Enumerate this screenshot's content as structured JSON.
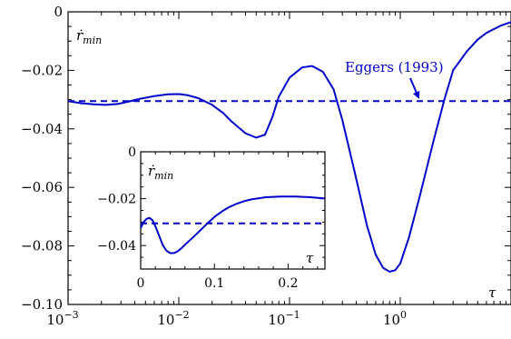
{
  "chart_data": [
    {
      "type": "line",
      "xscale": "log",
      "xlim": [
        0.001,
        10
      ],
      "ylim": [
        -0.1,
        0.0
      ],
      "x_tick_labels": [
        {
          "base": "10",
          "exp": "−3",
          "value": 0.001
        },
        {
          "base": "10",
          "exp": "−2",
          "value": 0.01
        },
        {
          "base": "10",
          "exp": "−1",
          "value": 0.1
        },
        {
          "base": "10",
          "exp": "0",
          "value": 1
        }
      ],
      "y_tick_labels": [
        {
          "label": "0",
          "value": 0.0
        },
        {
          "label": "−0.02",
          "value": -0.02
        },
        {
          "label": "−0.04",
          "value": -0.04
        },
        {
          "label": "−0.06",
          "value": -0.06
        },
        {
          "label": "−0.08",
          "value": -0.08
        },
        {
          "label": "−0.10",
          "value": -0.1
        }
      ],
      "xlabel": "τ",
      "ylabel": {
        "main": "ṙ",
        "sub": "min"
      },
      "series": [
        {
          "style": "solid",
          "color": "#0000cc",
          "x": [
            0.001,
            0.0013,
            0.0017,
            0.0022,
            0.0028,
            0.0035,
            0.0045,
            0.006,
            0.008,
            0.01,
            0.012,
            0.015,
            0.02,
            0.025,
            0.03,
            0.04,
            0.05,
            0.06,
            0.07,
            0.08,
            0.1,
            0.13,
            0.16,
            0.2,
            0.25,
            0.3,
            0.4,
            0.5,
            0.6,
            0.7,
            0.8,
            0.9,
            1.0,
            1.2,
            1.5,
            2.0,
            2.5,
            3.0,
            4.0,
            5.0,
            6.0,
            8.0,
            10.0
          ],
          "y": [
            -0.0305,
            -0.0312,
            -0.0316,
            -0.0318,
            -0.0315,
            -0.0307,
            -0.0297,
            -0.0288,
            -0.0282,
            -0.0281,
            -0.0285,
            -0.0295,
            -0.0318,
            -0.0345,
            -0.0375,
            -0.0415,
            -0.043,
            -0.042,
            -0.036,
            -0.029,
            -0.0225,
            -0.019,
            -0.0185,
            -0.0205,
            -0.0265,
            -0.037,
            -0.057,
            -0.073,
            -0.083,
            -0.0875,
            -0.0888,
            -0.0883,
            -0.086,
            -0.077,
            -0.063,
            -0.044,
            -0.03,
            -0.02,
            -0.0135,
            -0.0095,
            -0.0072,
            -0.0048,
            -0.0035
          ]
        },
        {
          "name": "Eggers (1993)",
          "style": "dashed",
          "color": "#0000cc",
          "x": [
            0.001,
            10.0
          ],
          "y": [
            -0.0305,
            -0.0305
          ]
        }
      ],
      "annotations": [
        {
          "text": "Eggers (1993)",
          "arrow_to": [
            1.5,
            -0.0305
          ]
        }
      ]
    },
    {
      "type": "line",
      "xscale": "linear",
      "xlim": [
        0.0,
        0.25
      ],
      "ylim": [
        -0.05,
        0.0
      ],
      "x_tick_labels": [
        {
          "label": "0",
          "value": 0.0
        },
        {
          "label": "0.1",
          "value": 0.1
        },
        {
          "label": "0.2",
          "value": 0.2
        }
      ],
      "y_tick_labels": [
        {
          "label": "0",
          "value": 0.0
        },
        {
          "label": "−0.02",
          "value": -0.02
        },
        {
          "label": "−0.04",
          "value": -0.04
        }
      ],
      "xlabel": "τ",
      "ylabel": {
        "main": "ṙ",
        "sub": "min"
      },
      "series": [
        {
          "style": "solid",
          "color": "#0000cc",
          "x": [
            0.0,
            0.004,
            0.008,
            0.012,
            0.016,
            0.02,
            0.025,
            0.03,
            0.035,
            0.04,
            0.045,
            0.05,
            0.055,
            0.06,
            0.065,
            0.07,
            0.08,
            0.09,
            0.1,
            0.11,
            0.12,
            0.13,
            0.14,
            0.15,
            0.17,
            0.19,
            0.21,
            0.23,
            0.25
          ],
          "y": [
            -0.0325,
            -0.03,
            -0.0286,
            -0.0282,
            -0.0292,
            -0.0318,
            -0.0358,
            -0.0398,
            -0.0422,
            -0.0432,
            -0.0432,
            -0.0425,
            -0.0412,
            -0.0397,
            -0.0382,
            -0.0368,
            -0.0338,
            -0.0307,
            -0.0278,
            -0.0255,
            -0.0236,
            -0.0222,
            -0.0211,
            -0.0203,
            -0.0194,
            -0.0191,
            -0.0191,
            -0.0194,
            -0.0199
          ]
        },
        {
          "style": "dashed",
          "color": "#0000cc",
          "x": [
            0.0,
            0.25
          ],
          "y": [
            -0.0305,
            -0.0305
          ]
        }
      ]
    }
  ]
}
